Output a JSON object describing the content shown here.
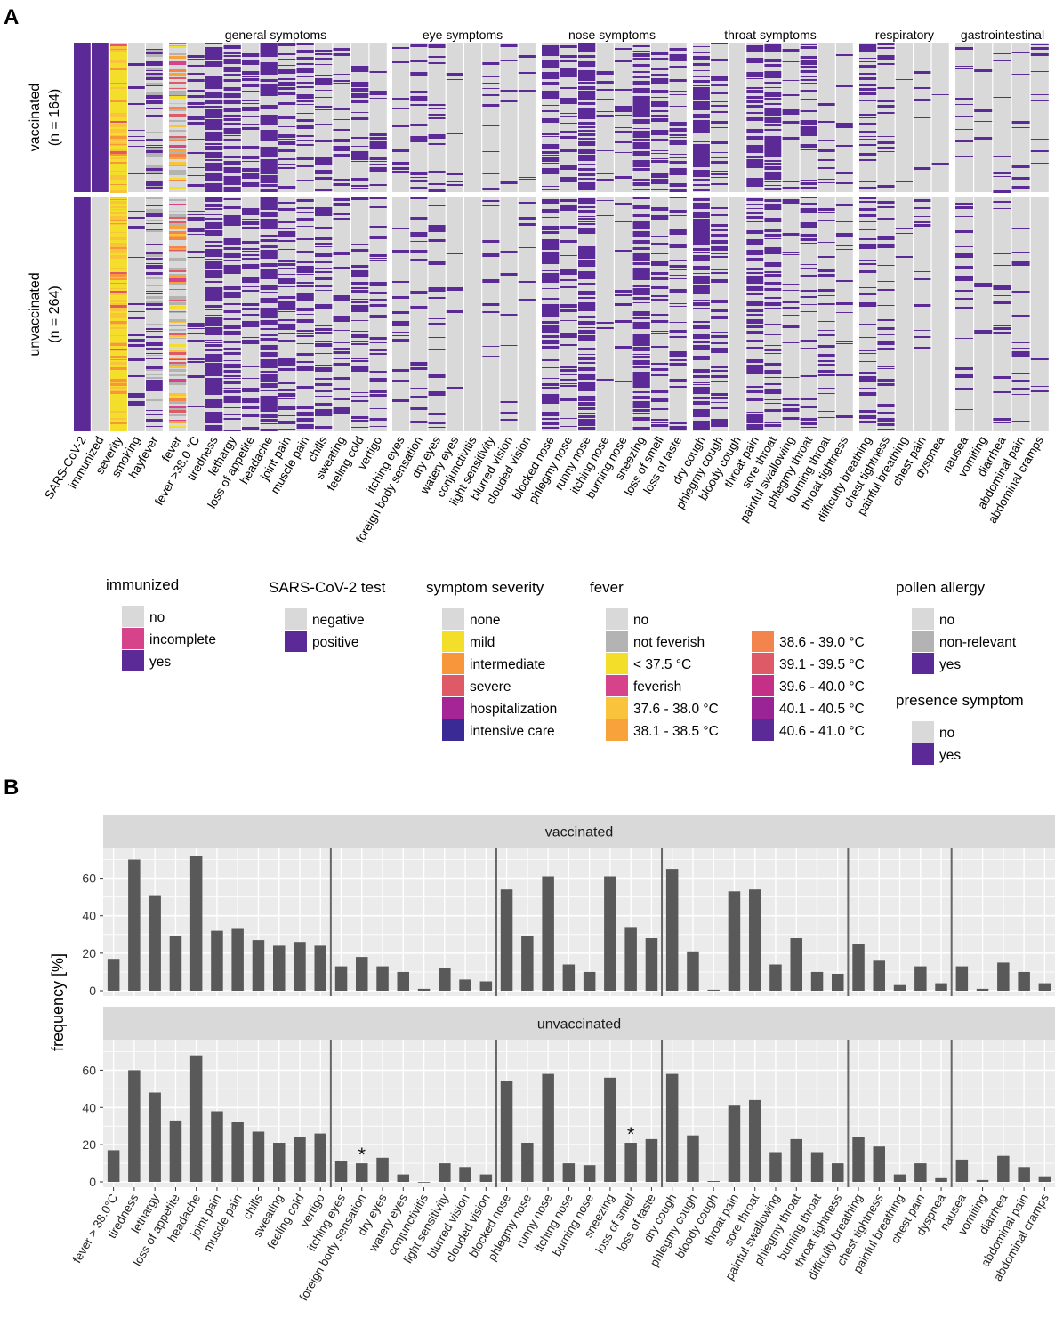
{
  "panel_labels": {
    "a": "A",
    "b": "B"
  },
  "heatmap": {
    "groups": [
      {
        "name": "vaccinated",
        "n_label": "(n = 164)",
        "n": 164
      },
      {
        "name": "unvaccinated",
        "n_label": "(n = 264)",
        "n": 264
      }
    ],
    "meta_columns": [
      "SARS-CoV-2",
      "immunized",
      "severity",
      "smoking",
      "hayfever"
    ],
    "fever_columns": [
      "fever",
      "fever >38.0 °C"
    ],
    "categories": [
      {
        "title": "general symptoms",
        "symptoms": [
          "tiredness",
          "lethargy",
          "loss of appetite",
          "headache",
          "joint pain",
          "muscle pain",
          "chills",
          "sweating",
          "feeling cold",
          "vertigo"
        ]
      },
      {
        "title": "eye symptoms",
        "symptoms": [
          "itching eyes",
          "foreign body sensation",
          "dry eyes",
          "watery eyes",
          "conjunctivitis",
          "light sensitivity",
          "blurred vision",
          "clouded vision"
        ]
      },
      {
        "title": "nose symptoms",
        "symptoms": [
          "blocked nose",
          "phlegmy nose",
          "runny nose",
          "itching nose",
          "burning nose",
          "sneezing",
          "loss of smell",
          "loss of taste"
        ]
      },
      {
        "title": "throat symptoms",
        "symptoms": [
          "dry cough",
          "phlegmy cough",
          "bloody cough",
          "throat pain",
          "sore throat",
          "painful swallowing",
          "phlegmy throat",
          "burning throat",
          "throat tightness"
        ]
      },
      {
        "title": "respiratory",
        "symptoms": [
          "difficulty breathing",
          "chest tightness",
          "painful breathing",
          "chest pain",
          "dyspnea"
        ]
      },
      {
        "title": "gastrointestinal",
        "symptoms": [
          "nausea",
          "vomiting",
          "diarrhea",
          "abdominal pain",
          "abdominal cramps"
        ]
      }
    ]
  },
  "legends": {
    "immunized": {
      "title": "immunized",
      "items": [
        {
          "label": "no",
          "color": "#d9d9d9"
        },
        {
          "label": "incomplete",
          "color": "#d6438a"
        },
        {
          "label": "yes",
          "color": "#5b2a96"
        }
      ]
    },
    "sars": {
      "title": "SARS-CoV-2 test",
      "items": [
        {
          "label": "negative",
          "color": "#d9d9d9"
        },
        {
          "label": "positive",
          "color": "#5b2a96"
        }
      ]
    },
    "severity": {
      "title": "symptom severity",
      "items": [
        {
          "label": "none",
          "color": "#d9d9d9"
        },
        {
          "label": "mild",
          "color": "#f3df2a"
        },
        {
          "label": "intermediate",
          "color": "#f7963b"
        },
        {
          "label": "severe",
          "color": "#dd5a66"
        },
        {
          "label": "hospitalization",
          "color": "#a52596"
        },
        {
          "label": "intensive care",
          "color": "#3a2a96"
        }
      ]
    },
    "fever": {
      "title": "fever",
      "items_a": [
        {
          "label": "no",
          "color": "#d9d9d9"
        },
        {
          "label": "not feverish",
          "color": "#b3b3b3"
        },
        {
          "label": "< 37.5 °C",
          "color": "#f3df2a"
        },
        {
          "label": "feverish",
          "color": "#d6438a"
        },
        {
          "label": "37.6 - 38.0 °C",
          "color": "#f9c33b"
        },
        {
          "label": "38.1 - 38.5 °C",
          "color": "#f7a23b"
        }
      ],
      "items_b": [
        {
          "label": "38.6 - 39.0 °C",
          "color": "#f3844d"
        },
        {
          "label": "39.1 - 39.5 °C",
          "color": "#dd5a66"
        },
        {
          "label": "39.6 - 40.0 °C",
          "color": "#c42f88"
        },
        {
          "label": "40.1 - 40.5 °C",
          "color": "#9a2396"
        },
        {
          "label": "40.6 - 41.0 °C",
          "color": "#5b2a96"
        }
      ]
    },
    "pollen": {
      "title": "pollen allergy",
      "items": [
        {
          "label": "no",
          "color": "#d9d9d9"
        },
        {
          "label": "non-relevant",
          "color": "#b3b3b3"
        },
        {
          "label": "yes",
          "color": "#5b2a96"
        }
      ]
    },
    "presence": {
      "title": "presence symptom",
      "items": [
        {
          "label": "no",
          "color": "#d9d9d9"
        },
        {
          "label": "yes",
          "color": "#5b2a96"
        }
      ]
    }
  },
  "chart_data": {
    "type": "bar",
    "ylabel": "frequency [%]",
    "ylim": [
      0,
      75
    ],
    "yticks": [
      0,
      20,
      40,
      60
    ],
    "groups_of_categories": [
      11,
      8,
      8,
      9,
      5,
      5
    ],
    "categories": [
      "fever > 38.0°C",
      "tiredness",
      "lethargy",
      "loss of appetite",
      "headache",
      "joint pain",
      "muscle pain",
      "chills",
      "sweating",
      "feeling cold",
      "vertigo",
      "itching eyes",
      "foreign body sensation",
      "dry eyes",
      "watery eyes",
      "conjunctivitis",
      "light sensitivity",
      "blurred vision",
      "clouded vision",
      "blocked nose",
      "phlegmy nose",
      "runny nose",
      "itching nose",
      "burning nose",
      "sneezing",
      "loss of smell",
      "loss of taste",
      "dry cough",
      "phlegmy cough",
      "bloody cough",
      "throat pain",
      "sore throat",
      "painful swallowing",
      "phlegmy throat",
      "burning throat",
      "throat tightness",
      "difficulty breathing",
      "chest tightness",
      "painful breathing",
      "chest pain",
      "dyspnea",
      "nausea",
      "vomiting",
      "diarrhea",
      "abdominal pain",
      "abdominal cramps"
    ],
    "series": [
      {
        "name": "vaccinated",
        "values": [
          17,
          70,
          51,
          29,
          72,
          32,
          33,
          27,
          24,
          26,
          24,
          13,
          18,
          13,
          10,
          1,
          12,
          6,
          5,
          54,
          29,
          61,
          14,
          10,
          61,
          34,
          28,
          65,
          21,
          0.5,
          53,
          54,
          14,
          28,
          10,
          9,
          25,
          16,
          3,
          13,
          4,
          13,
          1,
          15,
          10,
          4
        ]
      },
      {
        "name": "unvaccinated",
        "values": [
          17,
          60,
          48,
          33,
          68,
          38,
          32,
          27,
          21,
          24,
          26,
          11,
          10,
          13,
          4,
          0,
          10,
          8,
          4,
          54,
          21,
          58,
          10,
          9,
          56,
          21,
          23,
          58,
          25,
          0.5,
          41,
          44,
          16,
          23,
          16,
          10,
          24,
          19,
          4,
          10,
          2,
          12,
          1,
          14,
          8,
          3
        ]
      }
    ],
    "annotations": [
      {
        "series": "unvaccinated",
        "category": "foreign body sensation",
        "text": "*"
      },
      {
        "series": "unvaccinated",
        "category": "loss of smell",
        "text": "*"
      }
    ]
  }
}
